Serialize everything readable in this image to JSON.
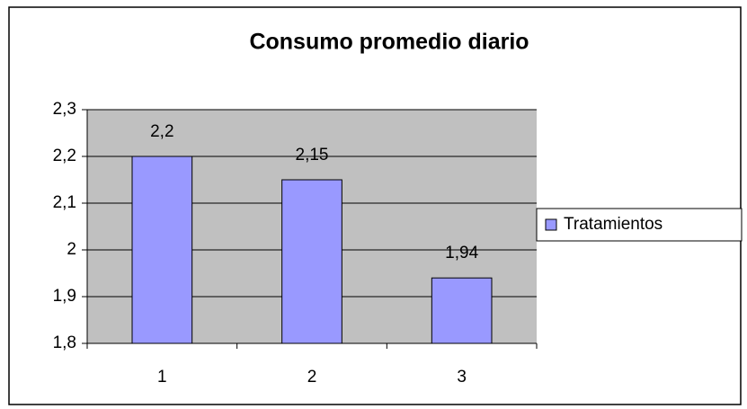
{
  "chart_data": {
    "type": "bar",
    "title": "Consumo promedio diario",
    "categories": [
      "1",
      "2",
      "3"
    ],
    "series": [
      {
        "name": "Tratamientos",
        "color": "#9999ff",
        "values": [
          2.2,
          2.15,
          1.94
        ],
        "value_labels": [
          "2,2",
          "2,15",
          "1,94"
        ]
      }
    ],
    "ylim": [
      1.8,
      2.3
    ],
    "yticks": [
      {
        "value": 1.8,
        "label": "1,8"
      },
      {
        "value": 1.9,
        "label": "1,9"
      },
      2,
      {
        "value": 2.1,
        "label": "2,1"
      },
      {
        "value": 2.2,
        "label": "2,2"
      },
      {
        "value": 2.3,
        "label": "2,3"
      }
    ],
    "grid": true,
    "legend": "right"
  }
}
